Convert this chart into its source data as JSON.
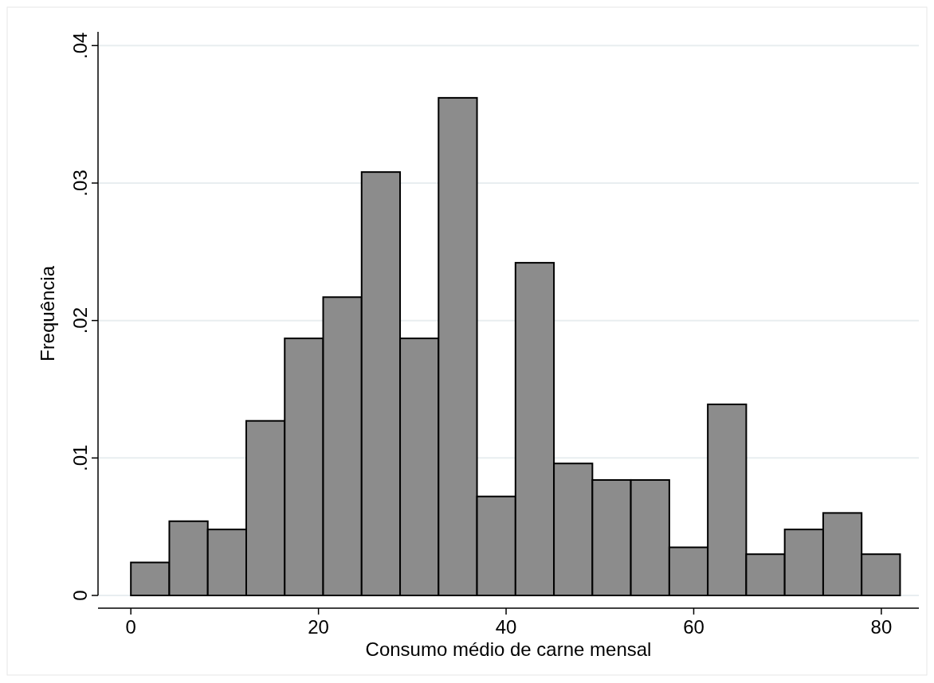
{
  "chart_data": {
    "type": "histogram",
    "xlabel": "Consumo médio de carne mensal",
    "ylabel": "Frequência",
    "bins": [
      0,
      4.1,
      8.2,
      12.3,
      16.4,
      20.5,
      24.6,
      28.7,
      32.8,
      36.9,
      41,
      45.1,
      49.2,
      53.3,
      57.4,
      61.5,
      65.6,
      69.7,
      73.8,
      77.9,
      82
    ],
    "values": [
      0.0024,
      0.0054,
      0.0048,
      0.0127,
      0.0187,
      0.0217,
      0.0308,
      0.0187,
      0.0362,
      0.0072,
      0.0242,
      0.0096,
      0.0084,
      0.0084,
      0.0035,
      0.0139,
      0.003,
      0.0048,
      0.006,
      0.003
    ],
    "color": "#8c8c8c",
    "xlim": [
      -3.5,
      84
    ],
    "xticks": [
      0,
      20,
      40,
      60,
      80
    ],
    "ylim": [
      0,
      0.041
    ],
    "yticks": [
      {
        "value": 0,
        "label": "0"
      },
      {
        "value": 0.01,
        "label": ".01"
      },
      {
        "value": 0.02,
        "label": ".02"
      },
      {
        "value": 0.03,
        "label": ".03"
      },
      {
        "value": 0.04,
        "label": ".04"
      }
    ],
    "grid": "y"
  }
}
